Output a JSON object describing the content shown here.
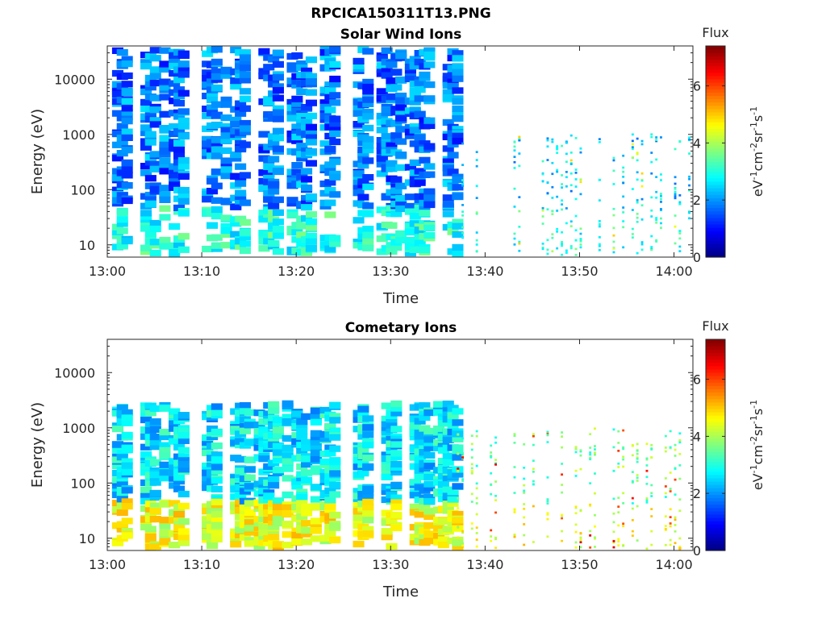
{
  "figure_title": "RPCICA150311T13.PNG",
  "colorbar": {
    "label_html": "eV⁻¹cm⁻²sr⁻¹s⁻¹",
    "label_base": "eV",
    "label_parts": [
      "eV",
      "-1",
      "cm",
      "-2",
      "sr",
      "-1",
      "s",
      "-1"
    ],
    "title": "Flux",
    "range": [
      0,
      7.4
    ],
    "ticks": [
      "0",
      "2",
      "4",
      "6"
    ],
    "colormap": "jet"
  },
  "chart_data": [
    {
      "type": "heatmap",
      "title": "Solar Wind Ions",
      "xlabel": "Time",
      "ylabel": "Energy (eV)",
      "x_range": [
        "13:00",
        "14:02"
      ],
      "x_ticks": [
        "13:00",
        "13:10",
        "13:20",
        "13:30",
        "13:40",
        "13:50",
        "14:00"
      ],
      "y_scale": "log",
      "y_range": [
        6,
        40000
      ],
      "y_ticks": [
        "10",
        "100",
        "1000",
        "10000"
      ],
      "colorbar_label": "Flux",
      "regime_change_time": "13:37",
      "dominant_flux_before": 1.8,
      "dominant_flux_after": 2.5,
      "low_energy_flux": 3.0,
      "max_flux": 5.0
    },
    {
      "type": "heatmap",
      "title": "Cometary Ions",
      "xlabel": "Time",
      "ylabel": "Energy (eV)",
      "x_range": [
        "13:00",
        "14:02"
      ],
      "x_ticks": [
        "13:00",
        "13:10",
        "13:20",
        "13:30",
        "13:40",
        "13:50",
        "14:00"
      ],
      "y_scale": "log",
      "y_range": [
        6,
        40000
      ],
      "y_ticks": [
        "10",
        "100",
        "1000",
        "10000"
      ],
      "colorbar_label": "Flux",
      "regime_change_time": "13:37",
      "dominant_flux_before": 2.6,
      "dominant_flux_after": 3.6,
      "low_energy_flux": 4.5,
      "max_flux": 6.8
    }
  ]
}
